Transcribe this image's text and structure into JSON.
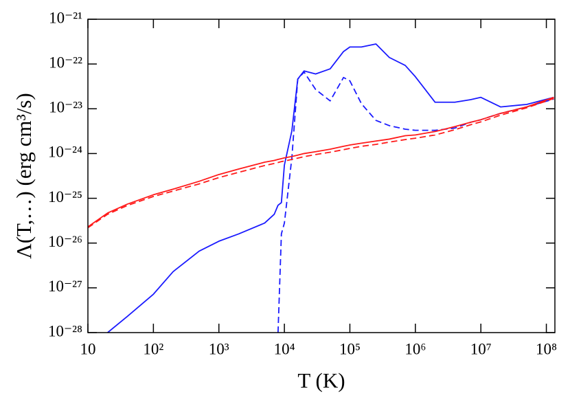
{
  "chart_data": {
    "type": "line",
    "x_label": "T (K)",
    "y_label": "Λ(T,…) (erg cm³/s)",
    "log_x": true,
    "log_y": true,
    "grid": false,
    "x": [
      10,
      20,
      40,
      100,
      200,
      500,
      1000,
      2000,
      5000,
      7000,
      8000,
      9000,
      10000,
      13000,
      16000,
      20000,
      30000,
      50000,
      80000,
      100000,
      150000,
      250000,
      400000,
      700000,
      1000000,
      2000000,
      4000000,
      7000000,
      10000000,
      20000000,
      50000000,
      130000000
    ],
    "xlim": [
      10,
      135000000
    ],
    "xticks": [
      10,
      {
        "value": 100,
        "label": "10²"
      },
      {
        "value": 1000,
        "label": "10³"
      },
      {
        "value": 10000,
        "label": "10⁴"
      },
      {
        "value": 100000,
        "label": "10⁵"
      },
      {
        "value": 1000000,
        "label": "10⁶"
      },
      {
        "value": 10000000,
        "label": "10⁷"
      },
      {
        "value": 100000000,
        "label": "10⁸"
      }
    ],
    "ylim": [
      1e-28,
      1e-21
    ],
    "yticks": [
      {
        "value": 1e-28,
        "label": "10⁻²⁸"
      },
      {
        "value": 1e-27,
        "label": "10⁻²⁷"
      },
      {
        "value": 1e-26,
        "label": "10⁻²⁶"
      },
      {
        "value": 1e-25,
        "label": "10⁻²⁵"
      },
      {
        "value": 1e-24,
        "label": "10⁻²⁴"
      },
      {
        "value": 1e-23,
        "label": "10⁻²³"
      },
      {
        "value": 1e-22,
        "label": "10⁻²²"
      },
      {
        "value": 1e-21,
        "label": "10⁻²¹"
      }
    ],
    "series": [
      {
        "color": "#1a1aff",
        "style": "solid",
        "values": [
          null,
          1e-28,
          2.3e-28,
          7.2e-28,
          2.3e-27,
          6.6e-27,
          1.1e-26,
          1.6e-26,
          2.8e-26,
          4.4e-26,
          7e-26,
          8e-26,
          5.5e-25,
          3.2e-24,
          4.6e-23,
          7e-23,
          6e-23,
          7.8e-23,
          1.9e-22,
          2.4e-22,
          2.4e-22,
          2.8e-22,
          1.4e-22,
          9.3e-23,
          5.2e-23,
          1.4e-23,
          1.4e-23,
          1.6e-23,
          1.8e-23,
          1.1e-23,
          1.25e-23,
          1.8e-23
        ]
      },
      {
        "color": "#1a1aff",
        "style": "dashed",
        "values": [
          null,
          null,
          null,
          null,
          null,
          null,
          null,
          null,
          null,
          null,
          1e-28,
          1.6e-26,
          2.8e-26,
          8e-25,
          4.6e-23,
          6.6e-23,
          2.7e-23,
          1.5e-23,
          5e-23,
          4.2e-23,
          1.3e-23,
          5.5e-24,
          4.2e-24,
          3.5e-24,
          3.3e-24,
          3.3e-24,
          3.7e-24,
          5e-24,
          5.7e-24,
          7.9e-24,
          1.1e-23,
          1.65e-23
        ]
      },
      {
        "color": "#ff1a1a",
        "style": "solid",
        "values": [
          2.3e-26,
          4.7e-26,
          7.4e-26,
          1.2e-25,
          1.6e-25,
          2.4e-25,
          3.4e-25,
          4.5e-25,
          6.4e-25,
          7e-25,
          7.4e-25,
          7.7e-25,
          8e-25,
          8.6e-25,
          9.2e-25,
          1e-24,
          1.1e-24,
          1.25e-24,
          1.45e-24,
          1.55e-24,
          1.7e-24,
          1.9e-24,
          2.1e-24,
          2.5e-24,
          2.6e-24,
          3.1e-24,
          4e-24,
          5e-24,
          5.7e-24,
          7.9e-24,
          1.1e-23,
          1.8e-23
        ]
      },
      {
        "color": "#ff1a1a",
        "style": "dashed",
        "values": [
          2.2e-26,
          4.4e-26,
          6.9e-26,
          1.1e-25,
          1.45e-25,
          2.1e-25,
          2.9e-25,
          3.8e-25,
          5.4e-25,
          6e-25,
          6.3e-25,
          6.6e-25,
          6.8e-25,
          7.4e-25,
          7.9e-25,
          8.5e-25,
          9.5e-25,
          1.07e-24,
          1.22e-24,
          1.3e-24,
          1.45e-24,
          1.6e-24,
          1.8e-24,
          2.05e-24,
          2.2e-24,
          2.6e-24,
          3.4e-24,
          4.4e-24,
          5.1e-24,
          7.2e-24,
          1.05e-23,
          1.7e-23
        ]
      }
    ]
  }
}
